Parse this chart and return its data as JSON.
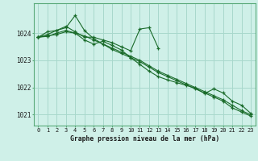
{
  "title": "Graphe pression niveau de la mer (hPa)",
  "bg_color": "#cff0e8",
  "grid_color": "#a8d8cc",
  "line_color": "#1a6b2a",
  "xlim": [
    -0.5,
    23.5
  ],
  "ylim": [
    1020.6,
    1025.1
  ],
  "yticks": [
    1021,
    1022,
    1023,
    1024
  ],
  "xticks": [
    0,
    1,
    2,
    3,
    4,
    5,
    6,
    7,
    8,
    9,
    10,
    11,
    12,
    13,
    14,
    15,
    16,
    17,
    18,
    19,
    20,
    21,
    22,
    23
  ],
  "series": [
    {
      "x": [
        0,
        1,
        2,
        3,
        4,
        5,
        6,
        7,
        8,
        9,
        10,
        11,
        12,
        13,
        14,
        15,
        16,
        17,
        18,
        19,
        20,
        21,
        22,
        23
      ],
      "y": [
        1023.85,
        1023.9,
        1023.95,
        1024.05,
        1024.0,
        1023.9,
        1023.75,
        1023.6,
        1023.45,
        1023.3,
        1023.15,
        1023.0,
        1022.8,
        1022.6,
        1022.45,
        1022.3,
        1022.15,
        1022.0,
        1021.85,
        1021.7,
        1021.55,
        1021.35,
        1021.15,
        1021.0
      ]
    },
    {
      "x": [
        0,
        1,
        2,
        3,
        4,
        5,
        6,
        7,
        8,
        9,
        10,
        11,
        12,
        13,
        14,
        15,
        16,
        17,
        18,
        19,
        20,
        21,
        22,
        23
      ],
      "y": [
        1023.85,
        1023.95,
        1024.1,
        1024.2,
        1024.65,
        1024.1,
        1023.8,
        1023.6,
        1023.4,
        1023.25,
        1023.1,
        1022.95,
        1022.75,
        1022.55,
        1022.4,
        1022.25,
        1022.1,
        1021.95,
        1021.8,
        1021.65,
        1021.5,
        1021.25,
        1021.1,
        1020.95
      ]
    },
    {
      "x": [
        0,
        1,
        2,
        3,
        4,
        5,
        6,
        7,
        8,
        9,
        10,
        11,
        12,
        13
      ],
      "y": [
        1023.85,
        1024.05,
        1024.1,
        1024.25,
        1024.05,
        1023.85,
        1023.85,
        1023.75,
        1023.65,
        1023.5,
        1023.35,
        1024.15,
        1024.2,
        1023.45
      ]
    },
    {
      "x": [
        0,
        1,
        2,
        3,
        4,
        5,
        6,
        7,
        8,
        9,
        10,
        11,
        12,
        13,
        14,
        15,
        16,
        17,
        18,
        19,
        20,
        21,
        22,
        23
      ],
      "y": [
        1023.85,
        1023.88,
        1024.0,
        1024.1,
        1024.0,
        1023.75,
        1023.6,
        1023.7,
        1023.55,
        1023.38,
        1023.1,
        1022.85,
        1022.6,
        1022.4,
        1022.28,
        1022.18,
        1022.08,
        1021.98,
        1021.78,
        1021.95,
        1021.8,
        1021.5,
        1021.35,
        1021.05
      ]
    }
  ]
}
